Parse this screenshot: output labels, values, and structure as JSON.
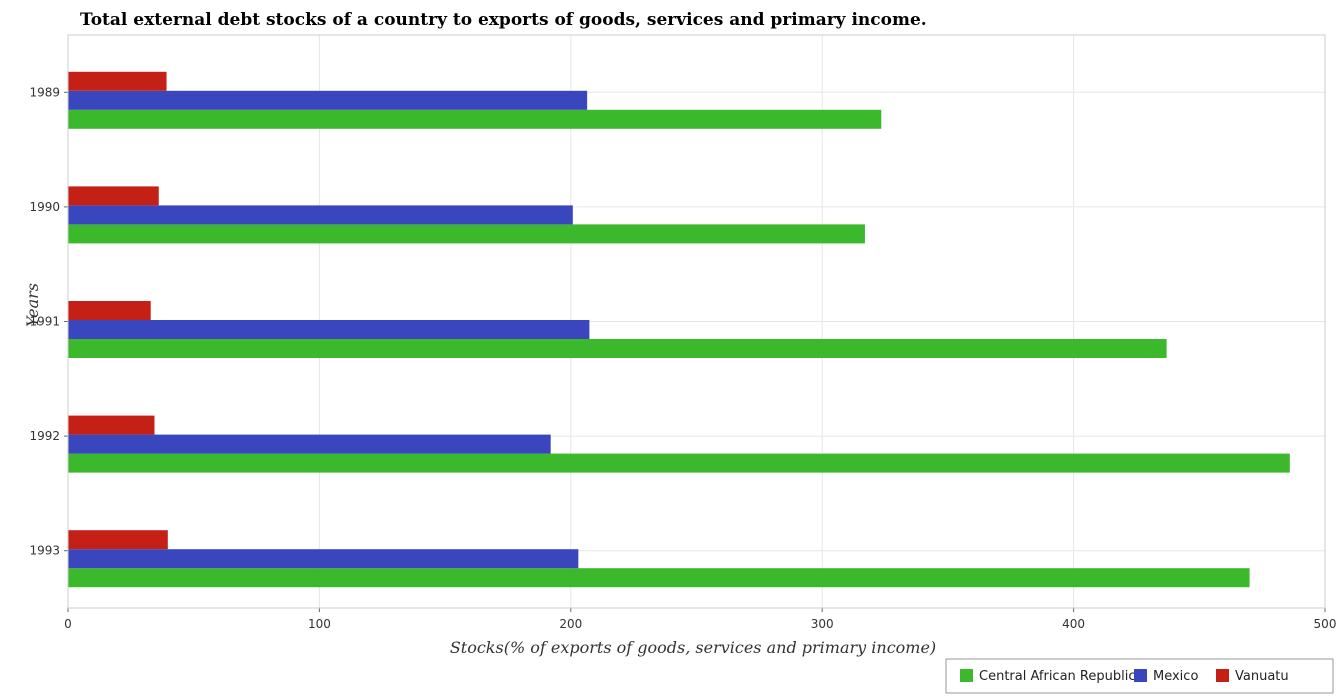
{
  "chart_data": {
    "type": "bar",
    "orientation": "horizontal",
    "title": "Total external debt stocks of a country to exports of goods, services and primary income.",
    "xlabel": "Stocks(% of exports of goods, services and primary income)",
    "ylabel": "Years",
    "categories": [
      "1989",
      "1990",
      "1991",
      "1992",
      "1993"
    ],
    "xlim": [
      0,
      500
    ],
    "xticks": [
      0,
      100,
      200,
      300,
      400,
      500
    ],
    "grid": true,
    "legend_position": "bottom-right",
    "series": [
      {
        "name": "Central African Republic",
        "color": "#3cb82c",
        "values": [
          323.5,
          317.0,
          437.0,
          486.0,
          470.0
        ]
      },
      {
        "name": "Mexico",
        "color": "#3a46bd",
        "values": [
          206.5,
          200.8,
          207.4,
          192.0,
          203.0
        ]
      },
      {
        "name": "Vanuatu",
        "color": "#c52016",
        "values": [
          39.2,
          36.1,
          32.9,
          34.4,
          39.7
        ]
      }
    ]
  }
}
